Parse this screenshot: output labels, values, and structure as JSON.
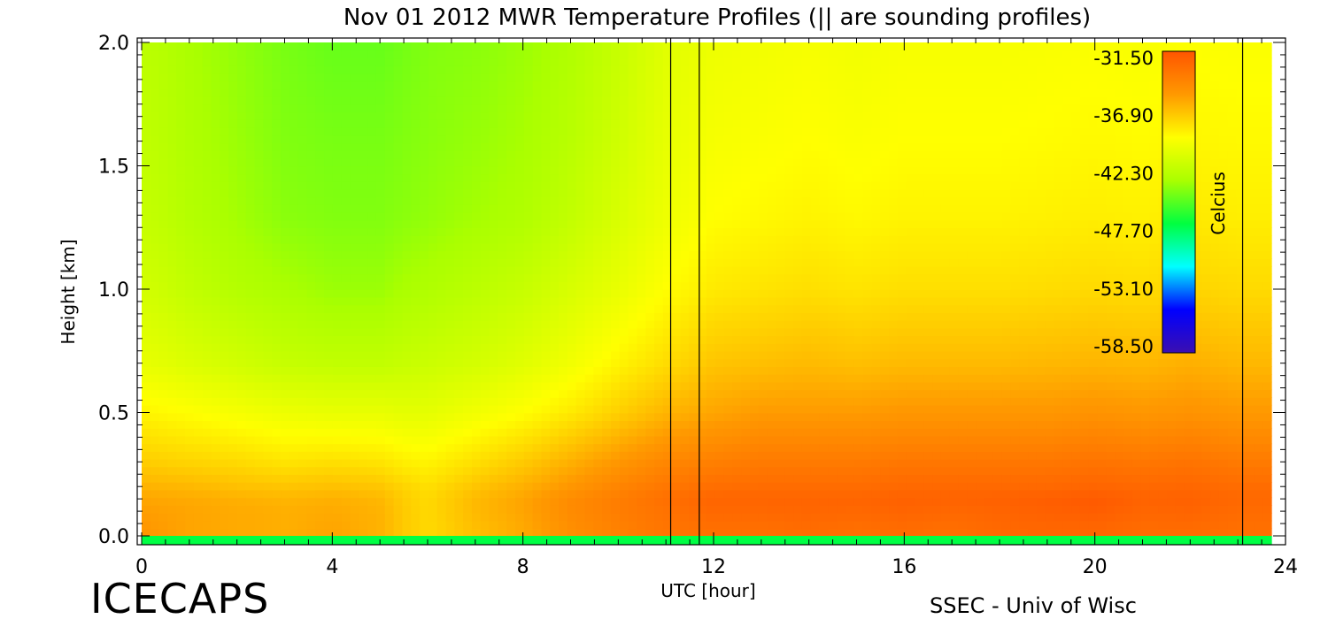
{
  "chart_data": {
    "type": "heatmap",
    "title": "Nov 01 2012 MWR Temperature Profiles (|| are sounding profiles)",
    "xlabel": "UTC [hour]",
    "ylabel": "Height [km]",
    "xlim": [
      0,
      24
    ],
    "ylim": [
      0,
      2.0
    ],
    "x_ticks": [
      0,
      4,
      8,
      12,
      16,
      20,
      24
    ],
    "x_tick_labels": [
      "0",
      "4",
      "8",
      "12",
      "16",
      "20",
      "24"
    ],
    "y_ticks": [
      0.0,
      0.5,
      1.0,
      1.5,
      2.0
    ],
    "y_tick_labels": [
      "0.0",
      "0.5",
      "1.0",
      "1.5",
      "2.0"
    ],
    "colorbar": {
      "label": "Celcius",
      "tick_labels": [
        "-31.50",
        "-36.90",
        "-42.30",
        "-47.70",
        "-53.10",
        "-58.50"
      ],
      "tick_values": [
        -31.5,
        -36.9,
        -42.3,
        -47.7,
        -53.1,
        -58.5
      ],
      "range": [
        -58.5,
        -31.5
      ]
    },
    "sounding_times_hr": [
      11.1,
      11.7,
      23.1
    ],
    "surface_layer_temp_c": -47,
    "grid_times_hr": [
      0,
      1,
      2,
      3,
      4,
      5,
      5.5,
      6,
      7,
      8,
      9,
      10,
      11,
      12,
      13,
      14,
      15,
      16,
      17,
      18,
      19,
      20,
      21,
      22,
      23,
      23.7
    ],
    "grid_heights_km": [
      0.03,
      0.1,
      0.15,
      0.2,
      0.3,
      0.5,
      0.7,
      1.0,
      1.3,
      1.6,
      2.0
    ],
    "temperature_grid_c": [
      [
        -35.2,
        -35.8,
        -36.0,
        -36.2,
        -35.8,
        -36.3,
        -37.2,
        -37.8,
        -36.8,
        -36.0,
        -34.8,
        -34.0,
        -33.3,
        -33.0,
        -33.0,
        -32.8,
        -33.0,
        -32.8,
        -33.0,
        -32.6,
        -32.5,
        -32.5,
        -32.8,
        -32.8,
        -33.0,
        -33.0
      ],
      [
        -35.5,
        -35.8,
        -36.0,
        -36.2,
        -36.0,
        -36.3,
        -37.2,
        -37.8,
        -36.6,
        -35.8,
        -34.6,
        -33.8,
        -33.2,
        -32.6,
        -32.6,
        -32.5,
        -32.6,
        -32.4,
        -32.6,
        -32.4,
        -32.2,
        -32.0,
        -32.5,
        -32.4,
        -32.8,
        -32.8
      ],
      [
        -35.8,
        -36.0,
        -36.2,
        -36.4,
        -36.2,
        -36.5,
        -37.3,
        -37.8,
        -36.6,
        -35.8,
        -34.6,
        -33.8,
        -33.0,
        -32.4,
        -32.4,
        -32.4,
        -32.4,
        -32.2,
        -32.3,
        -32.2,
        -32.0,
        -31.8,
        -32.3,
        -32.2,
        -32.6,
        -32.6
      ],
      [
        -36.3,
        -36.5,
        -36.8,
        -37.0,
        -36.8,
        -37.0,
        -37.6,
        -38.0,
        -37.0,
        -36.2,
        -35.2,
        -34.2,
        -33.4,
        -32.9,
        -32.8,
        -32.8,
        -32.8,
        -32.6,
        -32.6,
        -32.6,
        -32.6,
        -32.4,
        -32.6,
        -32.5,
        -32.8,
        -32.8
      ],
      [
        -37.3,
        -37.6,
        -37.8,
        -38.2,
        -38.0,
        -38.2,
        -38.6,
        -38.8,
        -38.0,
        -37.2,
        -36.2,
        -35.2,
        -34.3,
        -33.9,
        -33.6,
        -33.6,
        -33.6,
        -33.4,
        -33.4,
        -33.4,
        -33.4,
        -33.2,
        -33.4,
        -33.2,
        -33.6,
        -33.6
      ],
      [
        -38.8,
        -39.2,
        -39.6,
        -40.0,
        -40.2,
        -40.2,
        -40.4,
        -40.4,
        -39.8,
        -39.2,
        -38.4,
        -37.4,
        -36.4,
        -35.8,
        -35.4,
        -35.4,
        -35.4,
        -35.2,
        -35.2,
        -35.2,
        -35.2,
        -35.0,
        -35.2,
        -35.0,
        -35.3,
        -35.3
      ],
      [
        -40.2,
        -40.8,
        -41.3,
        -41.8,
        -42.0,
        -42.0,
        -41.8,
        -41.6,
        -41.2,
        -40.6,
        -39.8,
        -38.8,
        -37.9,
        -37.0,
        -36.8,
        -36.6,
        -36.8,
        -36.6,
        -36.6,
        -36.6,
        -36.5,
        -36.4,
        -36.5,
        -36.2,
        -36.5,
        -36.5
      ],
      [
        -41.2,
        -42.0,
        -42.6,
        -43.0,
        -43.4,
        -43.4,
        -43.0,
        -42.8,
        -42.3,
        -41.8,
        -41.0,
        -40.2,
        -39.2,
        -38.4,
        -38.2,
        -38.0,
        -38.2,
        -38.0,
        -38.0,
        -38.0,
        -37.9,
        -37.8,
        -37.9,
        -37.6,
        -37.8,
        -37.8
      ],
      [
        -41.8,
        -42.6,
        -43.2,
        -43.8,
        -44.0,
        -44.0,
        -43.8,
        -43.6,
        -43.2,
        -42.8,
        -42.0,
        -41.0,
        -40.0,
        -39.2,
        -39.0,
        -38.8,
        -39.0,
        -38.8,
        -38.8,
        -38.8,
        -38.7,
        -38.6,
        -38.7,
        -38.4,
        -38.6,
        -38.6
      ],
      [
        -42.0,
        -42.8,
        -43.4,
        -44.0,
        -44.2,
        -44.2,
        -44.0,
        -43.8,
        -43.5,
        -43.1,
        -42.4,
        -41.4,
        -40.3,
        -39.6,
        -39.4,
        -39.2,
        -39.4,
        -39.2,
        -39.2,
        -39.2,
        -39.1,
        -39.0,
        -39.1,
        -38.9,
        -39.0,
        -39.0
      ],
      [
        -42.2,
        -43.0,
        -43.6,
        -44.2,
        -44.6,
        -44.6,
        -44.3,
        -44.0,
        -43.8,
        -43.4,
        -42.8,
        -41.8,
        -40.6,
        -40.0,
        -39.8,
        -39.6,
        -39.8,
        -39.6,
        -39.6,
        -39.6,
        -39.5,
        -39.4,
        -39.5,
        -39.3,
        -39.4,
        -39.4
      ]
    ]
  },
  "footer": {
    "logo_text": "ICECAPS",
    "credit": "SSEC - Univ of Wisc"
  },
  "colors": {
    "background": "#ffffff",
    "axes": "#000000",
    "colormap": [
      "#3b0fb0",
      "#0000ff",
      "#00ffff",
      "#00ff40",
      "#aaff00",
      "#ffff00",
      "#ff9900",
      "#ff5500"
    ]
  }
}
